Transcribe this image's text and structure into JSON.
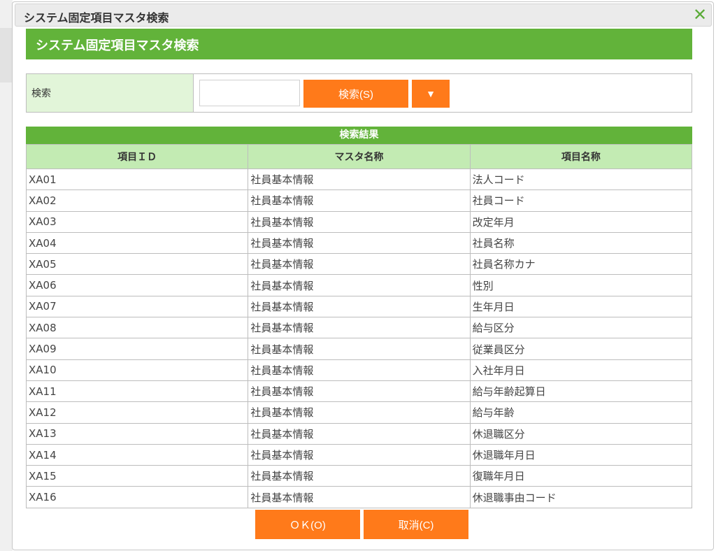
{
  "dialog": {
    "title": "システム固定項目マスタ検索",
    "close_icon": "close-x-icon"
  },
  "header": {
    "title": "システム固定項目マスタ検索"
  },
  "search": {
    "label": "検索",
    "value": "",
    "placeholder": "",
    "search_button": "検索(S)",
    "toggle_button": "▼"
  },
  "results": {
    "title": "検索結果",
    "columns": [
      "項目ＩＤ",
      "マスタ名称",
      "項目名称"
    ],
    "rows": [
      [
        "XA01",
        "社員基本情報",
        "法人コード"
      ],
      [
        "XA02",
        "社員基本情報",
        "社員コード"
      ],
      [
        "XA03",
        "社員基本情報",
        "改定年月"
      ],
      [
        "XA04",
        "社員基本情報",
        "社員名称"
      ],
      [
        "XA05",
        "社員基本情報",
        "社員名称カナ"
      ],
      [
        "XA06",
        "社員基本情報",
        "性別"
      ],
      [
        "XA07",
        "社員基本情報",
        "生年月日"
      ],
      [
        "XA08",
        "社員基本情報",
        "給与区分"
      ],
      [
        "XA09",
        "社員基本情報",
        "従業員区分"
      ],
      [
        "XA10",
        "社員基本情報",
        "入社年月日"
      ],
      [
        "XA11",
        "社員基本情報",
        "給与年齢起算日"
      ],
      [
        "XA12",
        "社員基本情報",
        "給与年齢"
      ],
      [
        "XA13",
        "社員基本情報",
        "休退職区分"
      ],
      [
        "XA14",
        "社員基本情報",
        "休退職年月日"
      ],
      [
        "XA15",
        "社員基本情報",
        "復職年月日"
      ],
      [
        "XA16",
        "社員基本情報",
        "休退職事由コード"
      ]
    ]
  },
  "footer": {
    "ok_button": "ＯＫ(O)",
    "cancel_button": "取消(C)"
  },
  "colors": {
    "green": "#62b33a",
    "light_green": "#c3ebb3",
    "orange": "#ff7a1a"
  }
}
